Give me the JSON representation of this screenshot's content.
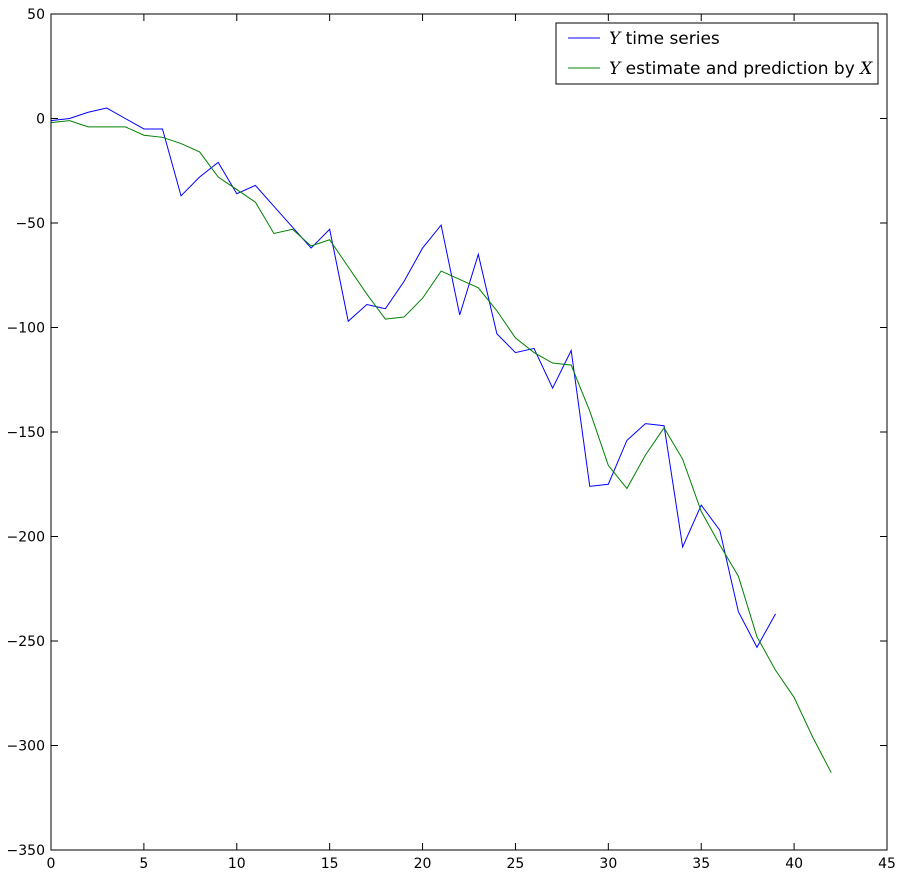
{
  "chart_data": {
    "type": "line",
    "title": "",
    "xlabel": "",
    "ylabel": "",
    "xlim": [
      0,
      45
    ],
    "ylim": [
      -350,
      50
    ],
    "xticks": [
      0,
      5,
      10,
      15,
      20,
      25,
      30,
      35,
      40,
      45
    ],
    "yticks": [
      50,
      0,
      -50,
      -100,
      -150,
      -200,
      -250,
      -300,
      -350
    ],
    "xtick_labels": [
      "0",
      "5",
      "10",
      "15",
      "20",
      "25",
      "30",
      "35",
      "40",
      "45"
    ],
    "ytick_labels": [
      "50",
      "0",
      "−50",
      "−100",
      "−150",
      "−200",
      "−250",
      "−300",
      "−350"
    ],
    "grid": false,
    "legend_position": "top-right",
    "series": [
      {
        "name_var": "Y",
        "name_text": "time series",
        "name_suffix_var": "",
        "color": "#0000ff",
        "x": [
          0,
          1,
          2,
          3,
          4,
          5,
          6,
          7,
          8,
          9,
          10,
          11,
          12,
          13,
          14,
          15,
          16,
          17,
          18,
          19,
          20,
          21,
          22,
          23,
          24,
          25,
          26,
          27,
          28,
          29,
          30,
          31,
          32,
          33,
          34,
          35,
          36,
          37,
          38,
          39
        ],
        "y": [
          -1,
          0,
          3,
          5,
          0,
          -5,
          -5,
          -37,
          -28,
          -21,
          -36,
          -32,
          -42,
          -52,
          -62,
          -53,
          -97,
          -89,
          -91,
          -78,
          -62,
          -51,
          -94,
          -65,
          -103,
          -112,
          -110,
          -129,
          -111,
          -176,
          -175,
          -154,
          -146,
          -147,
          -205,
          -185,
          -197,
          -236,
          -253,
          -237
        ]
      },
      {
        "name_var": "Y",
        "name_text": "estimate and prediction by",
        "name_suffix_var": "X",
        "color": "#008000",
        "x": [
          0,
          1,
          2,
          3,
          4,
          5,
          6,
          7,
          8,
          9,
          10,
          11,
          12,
          13,
          14,
          15,
          16,
          17,
          18,
          19,
          20,
          21,
          22,
          23,
          24,
          25,
          26,
          27,
          28,
          29,
          30,
          31,
          32,
          33,
          34,
          35,
          36,
          37,
          38,
          39,
          40,
          41,
          42
        ],
        "y": [
          -2,
          -1,
          -4,
          -4,
          -4,
          -8,
          -9,
          -12,
          -16,
          -28,
          -34,
          -40,
          -55,
          -53,
          -61,
          -58,
          -71,
          -84,
          -96,
          -95,
          -86,
          -73,
          -77,
          -81,
          -92,
          -105,
          -112,
          -117,
          -118,
          -140,
          -166,
          -177,
          -161,
          -148,
          -163,
          -188,
          -204,
          -219,
          -248,
          -264,
          -277,
          -296,
          -313
        ]
      }
    ]
  }
}
